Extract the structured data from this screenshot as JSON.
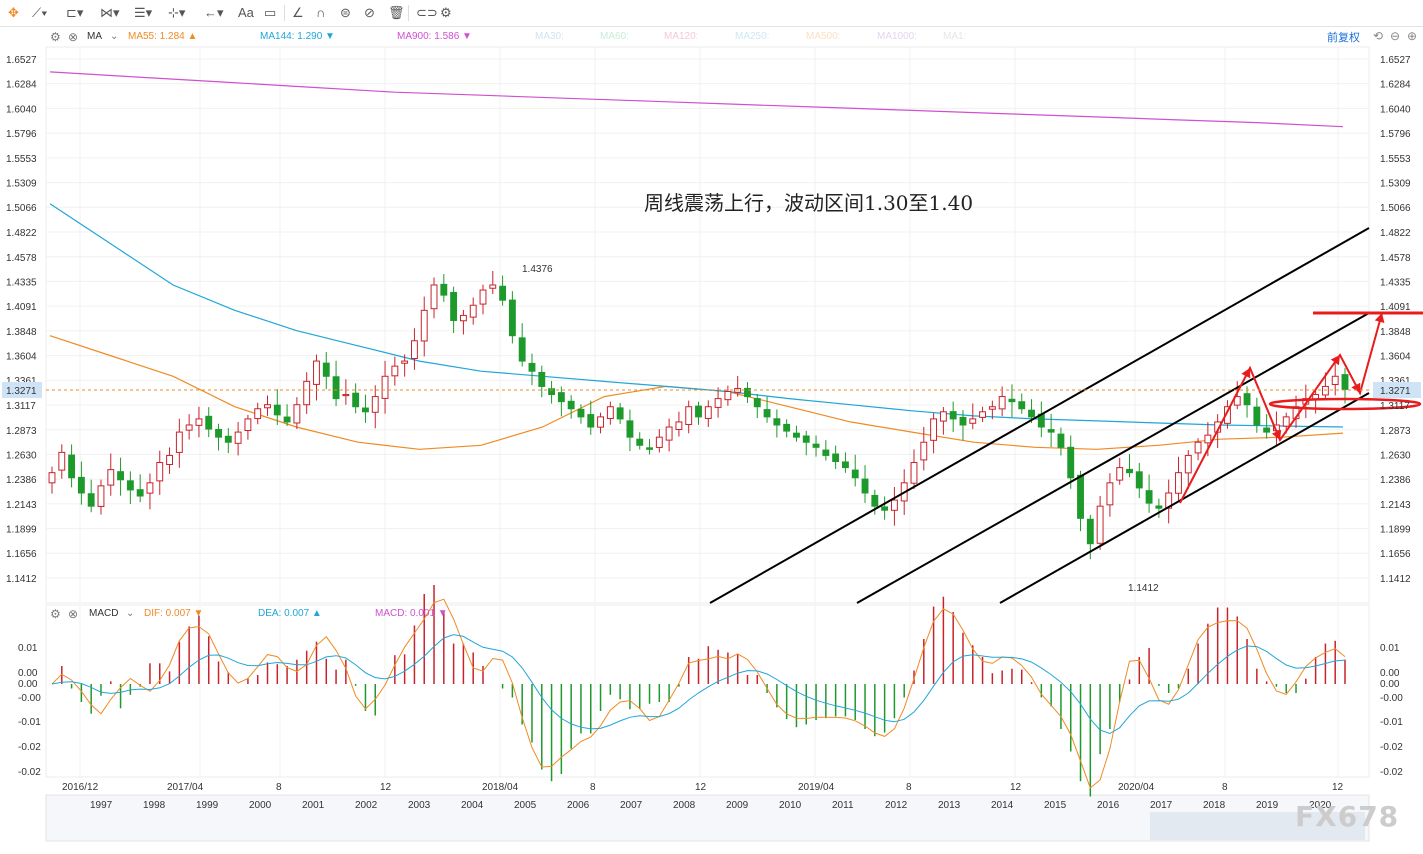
{
  "toolbar": {
    "icons": [
      "crosshair-icon",
      "line-tool-icon",
      "shape-tool-icon",
      "pattern-tool-icon",
      "fib-tool-icon",
      "gann-tool-icon",
      "arrow-tool-icon"
    ],
    "text_label": "Aa"
  },
  "ma_bar": {
    "indicator": "MA",
    "items": [
      {
        "label": "MA55: 1.284",
        "color": "#f08a24",
        "arrow": "▲"
      },
      {
        "label": "MA144: 1.290",
        "color": "#1fa6d8",
        "arrow": "▼"
      },
      {
        "label": "MA900: 1.586",
        "color": "#d14fd1",
        "arrow": "▼"
      },
      {
        "label": "MA30:",
        "color": "#cfe3f2",
        "arrow": ""
      },
      {
        "label": "MA60:",
        "color": "#c8ecd8",
        "arrow": ""
      },
      {
        "label": "MA120:",
        "color": "#f4c9d4",
        "arrow": ""
      },
      {
        "label": "MA250:",
        "color": "#cde8f4",
        "arrow": ""
      },
      {
        "label": "MA500:",
        "color": "#f9e0c2",
        "arrow": ""
      },
      {
        "label": "MA1000:",
        "color": "#e4d4f2",
        "arrow": ""
      },
      {
        "label": "MA1:",
        "color": "#e6e6e6",
        "arrow": ""
      }
    ],
    "adjust_label": "前复权"
  },
  "macd_bar": {
    "indicator": "MACD",
    "items": [
      {
        "label": "DIF: 0.007",
        "color": "#f08a24",
        "arrow": "▼"
      },
      {
        "label": "DEA: 0.007",
        "color": "#1fa6d8",
        "arrow": "▲"
      },
      {
        "label": "MACD: 0.001",
        "color": "#d14fd1",
        "arrow": "▼"
      }
    ]
  },
  "annotation": "周线震荡上行，波动区间1.30至1.40",
  "watermark": "FX678",
  "colors": {
    "up": "#c8232c",
    "down": "#1e9a2d",
    "ma55": "#f08a24",
    "ma144": "#1fa6d8",
    "ma900": "#d14fd1",
    "current": "#f08a24",
    "channel": "#000000",
    "red_mark": "#e81c1c"
  },
  "chart_data": {
    "type": "candlestick",
    "price_axis": [
      "1.6527",
      "1.6284",
      "1.6040",
      "1.5796",
      "1.5553",
      "1.5309",
      "1.5066",
      "1.4822",
      "1.4578",
      "1.4335",
      "1.4091",
      "1.3848",
      "1.3604",
      "1.3361",
      "1.3117",
      "1.2873",
      "1.2630",
      "1.2386",
      "1.2143",
      "1.1899",
      "1.1656",
      "1.1412"
    ],
    "current_price": "1.3271",
    "high_label": "1.4376",
    "low_label": "1.1412",
    "macd_axis": [
      "0.01",
      "0.00",
      "0.00",
      "-0.00",
      "-0.01",
      "-0.02",
      "-0.02"
    ],
    "time_labels": [
      "2016/12",
      "2017/04",
      "8",
      "12",
      "2018/04",
      "8",
      "12",
      "2019/04",
      "8",
      "12",
      "2020/04",
      "8",
      "12"
    ],
    "overview_years": [
      "1997",
      "1998",
      "1999",
      "2000",
      "2001",
      "2002",
      "2003",
      "2004",
      "2005",
      "2006",
      "2007",
      "2008",
      "2009",
      "2010",
      "2011",
      "2012",
      "2013",
      "2014",
      "2015",
      "2016",
      "2017",
      "2018",
      "2019",
      "2020"
    ],
    "closes": [
      1.245,
      1.265,
      1.24,
      1.225,
      1.212,
      1.232,
      1.248,
      1.238,
      1.228,
      1.222,
      1.235,
      1.255,
      1.262,
      1.285,
      1.292,
      1.298,
      1.288,
      1.28,
      1.275,
      1.285,
      1.298,
      1.308,
      1.312,
      1.302,
      1.295,
      1.312,
      1.335,
      1.355,
      1.34,
      1.318,
      1.322,
      1.31,
      1.305,
      1.32,
      1.34,
      1.35,
      1.355,
      1.375,
      1.405,
      1.43,
      1.42,
      1.395,
      1.4,
      1.41,
      1.425,
      1.43,
      1.415,
      1.38,
      1.355,
      1.345,
      1.33,
      1.322,
      1.315,
      1.308,
      1.3,
      1.29,
      1.3,
      1.31,
      1.298,
      1.28,
      1.272,
      1.268,
      1.28,
      1.29,
      1.295,
      1.31,
      1.3,
      1.31,
      1.318,
      1.325,
      1.328,
      1.32,
      1.31,
      1.3,
      1.292,
      1.286,
      1.28,
      1.275,
      1.27,
      1.262,
      1.256,
      1.25,
      1.24,
      1.225,
      1.212,
      1.208,
      1.218,
      1.235,
      1.255,
      1.275,
      1.298,
      1.305,
      1.298,
      1.292,
      1.298,
      1.305,
      1.31,
      1.32,
      1.315,
      1.308,
      1.3,
      1.29,
      1.285,
      1.27,
      1.24,
      1.2,
      1.175,
      1.212,
      1.235,
      1.25,
      1.245,
      1.23,
      1.215,
      1.21,
      1.225,
      1.245,
      1.262,
      1.275,
      1.282,
      1.295,
      1.31,
      1.32,
      1.312,
      1.292,
      1.285,
      1.292,
      1.3,
      1.31,
      1.318,
      1.322,
      1.33,
      1.34,
      1.3271
    ],
    "series": [
      {
        "name": "MA55",
        "values": [
          1.38,
          1.36,
          1.34,
          1.31,
          1.29,
          1.275,
          1.268,
          1.272,
          1.29,
          1.32,
          1.33,
          1.325,
          1.31,
          1.295,
          1.285,
          1.275,
          1.27,
          1.268,
          1.272,
          1.278,
          1.28,
          1.284
        ]
      },
      {
        "name": "MA144",
        "values": [
          1.51,
          1.47,
          1.43,
          1.405,
          1.385,
          1.37,
          1.355,
          1.345,
          1.34,
          1.335,
          1.33,
          1.325,
          1.318,
          1.312,
          1.306,
          1.301,
          1.298,
          1.296,
          1.294,
          1.292,
          1.291,
          1.29
        ]
      },
      {
        "name": "MA900",
        "values": [
          1.64,
          1.635,
          1.63,
          1.625,
          1.62,
          1.617,
          1.614,
          1.611,
          1.608,
          1.605,
          1.602,
          1.599,
          1.596,
          1.593,
          1.59,
          1.586
        ]
      }
    ]
  }
}
